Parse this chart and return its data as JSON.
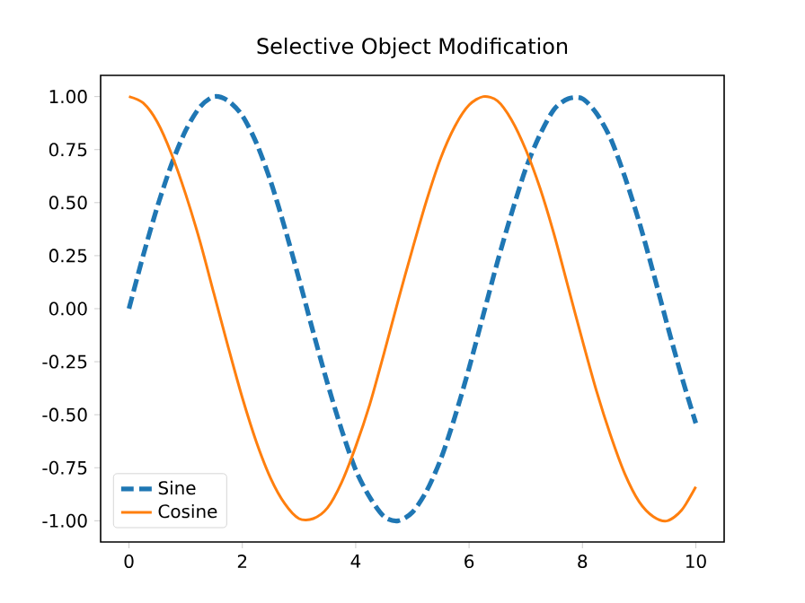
{
  "chart_data": {
    "type": "line",
    "title": "Selective Object Modification",
    "x": [
      0,
      0.25,
      0.5,
      0.75,
      1,
      1.25,
      1.5,
      1.75,
      2,
      2.25,
      2.5,
      2.75,
      3,
      3.25,
      3.5,
      3.75,
      4,
      4.25,
      4.5,
      4.75,
      5,
      5.25,
      5.5,
      5.75,
      6,
      6.25,
      6.5,
      6.75,
      7,
      7.25,
      7.5,
      7.75,
      8,
      8.25,
      8.5,
      8.75,
      9,
      9.25,
      9.5,
      9.75,
      10
    ],
    "series": [
      {
        "name": "Sine",
        "color": "#1f77b4",
        "line_style": "dashed",
        "values": [
          0,
          0.25,
          0.48,
          0.68,
          0.84,
          0.95,
          1.0,
          0.98,
          0.91,
          0.78,
          0.6,
          0.38,
          0.14,
          -0.11,
          -0.35,
          -0.57,
          -0.76,
          -0.89,
          -0.98,
          -1.0,
          -0.96,
          -0.86,
          -0.71,
          -0.51,
          -0.28,
          -0.03,
          0.22,
          0.45,
          0.66,
          0.82,
          0.94,
          0.99,
          0.99,
          0.92,
          0.8,
          0.62,
          0.41,
          0.17,
          -0.08,
          -0.32,
          -0.54
        ]
      },
      {
        "name": "Cosine",
        "color": "#ff7f0e",
        "line_style": "solid",
        "values": [
          1,
          0.97,
          0.88,
          0.73,
          0.54,
          0.32,
          0.07,
          -0.18,
          -0.42,
          -0.63,
          -0.8,
          -0.92,
          -0.99,
          -0.99,
          -0.94,
          -0.82,
          -0.65,
          -0.45,
          -0.21,
          0.04,
          0.28,
          0.51,
          0.71,
          0.86,
          0.96,
          1.0,
          0.98,
          0.89,
          0.75,
          0.57,
          0.35,
          0.1,
          -0.15,
          -0.39,
          -0.6,
          -0.78,
          -0.91,
          -0.98,
          -1.0,
          -0.95,
          -0.84
        ]
      }
    ],
    "xlim": [
      -0.5,
      10.5
    ],
    "ylim": [
      -1.1,
      1.1
    ],
    "xticks": [
      0,
      2,
      4,
      6,
      8,
      10
    ],
    "yticks": [
      {
        "value": -1,
        "label": "-1.00"
      },
      {
        "value": -0.75,
        "label": "-0.75"
      },
      {
        "value": -0.5,
        "label": "-0.50"
      },
      {
        "value": -0.25,
        "label": "-0.25"
      },
      {
        "value": 0,
        "label": "0.00"
      },
      {
        "value": 0.25,
        "label": "0.25"
      },
      {
        "value": 0.5,
        "label": "0.50"
      },
      {
        "value": 0.75,
        "label": "0.75"
      },
      {
        "value": 1,
        "label": "1.00"
      }
    ],
    "legend": "bottom left",
    "grid": false
  }
}
